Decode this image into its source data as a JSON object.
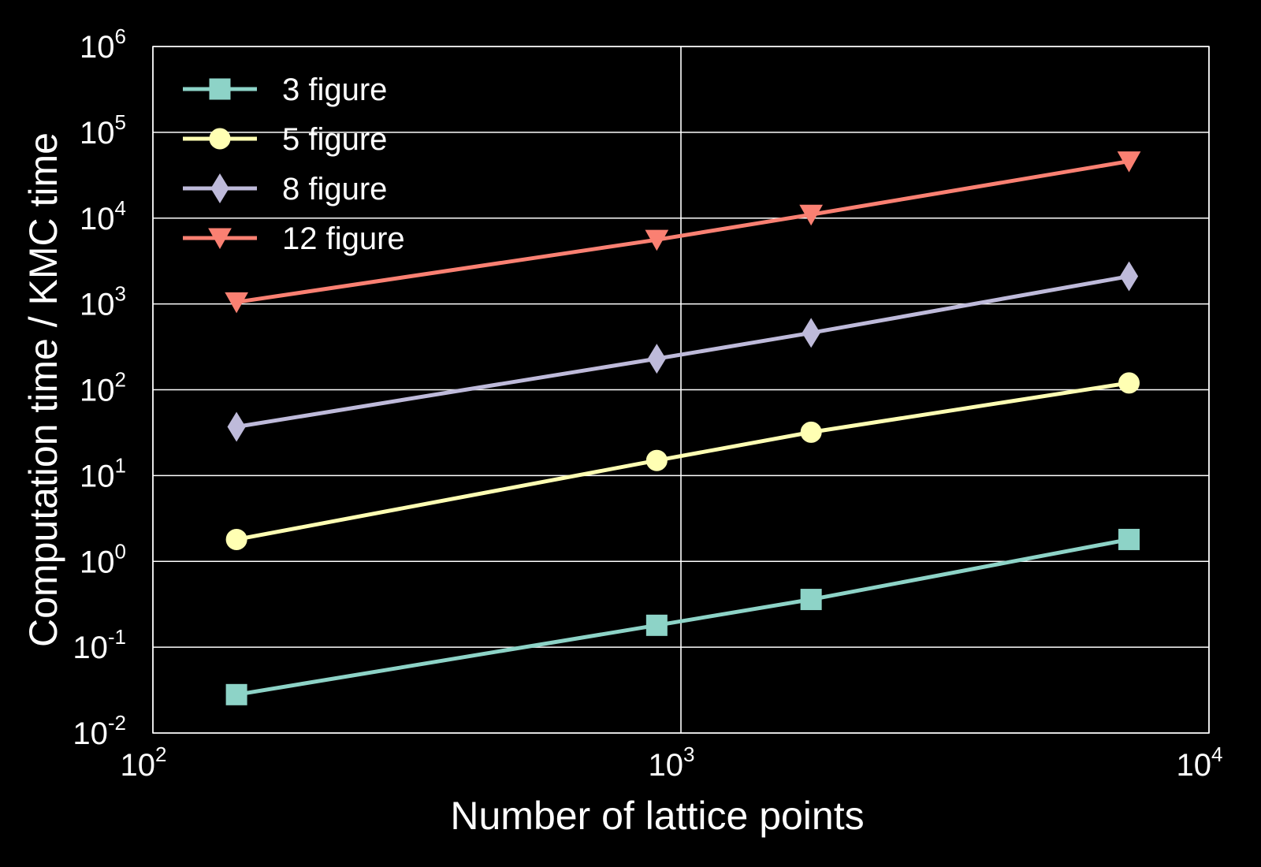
{
  "chart_data": {
    "type": "line",
    "title": "",
    "xlabel": "Number of lattice points",
    "ylabel": "Computation time / KMC time",
    "xscale": "log",
    "yscale": "log",
    "xlim": [
      100,
      10000
    ],
    "ylim": [
      0.01,
      1000000
    ],
    "x_ticks": [
      {
        "base": "10",
        "exp": "2",
        "value": 100
      },
      {
        "base": "10",
        "exp": "3",
        "value": 1000
      },
      {
        "base": "10",
        "exp": "4",
        "value": 10000
      }
    ],
    "y_ticks": [
      {
        "base": "10",
        "exp": "-2",
        "value": 0.01
      },
      {
        "base": "10",
        "exp": "-1",
        "value": 0.1
      },
      {
        "base": "10",
        "exp": "0",
        "value": 1
      },
      {
        "base": "10",
        "exp": "1",
        "value": 10
      },
      {
        "base": "10",
        "exp": "2",
        "value": 100
      },
      {
        "base": "10",
        "exp": "3",
        "value": 1000
      },
      {
        "base": "10",
        "exp": "4",
        "value": 10000
      },
      {
        "base": "10",
        "exp": "5",
        "value": 100000
      },
      {
        "base": "10",
        "exp": "6",
        "value": 1000000
      }
    ],
    "grid": true,
    "legend": "top-left",
    "x": [
      144,
      900,
      1764,
      7056
    ],
    "series": [
      {
        "name": "3 figure",
        "color": "#8dd3c7",
        "marker": "square",
        "values": [
          0.028,
          0.18,
          0.36,
          1.8
        ]
      },
      {
        "name": "5 figure",
        "color": "#ffffb3",
        "marker": "circle",
        "values": [
          1.8,
          15,
          32,
          120
        ]
      },
      {
        "name": "8 figure",
        "color": "#bebada",
        "marker": "diamond",
        "values": [
          37,
          230,
          460,
          2100
        ]
      },
      {
        "name": "12 figure",
        "color": "#fa8072",
        "marker": "triangle-down",
        "values": [
          1050,
          5600,
          11000,
          46000
        ]
      }
    ]
  }
}
